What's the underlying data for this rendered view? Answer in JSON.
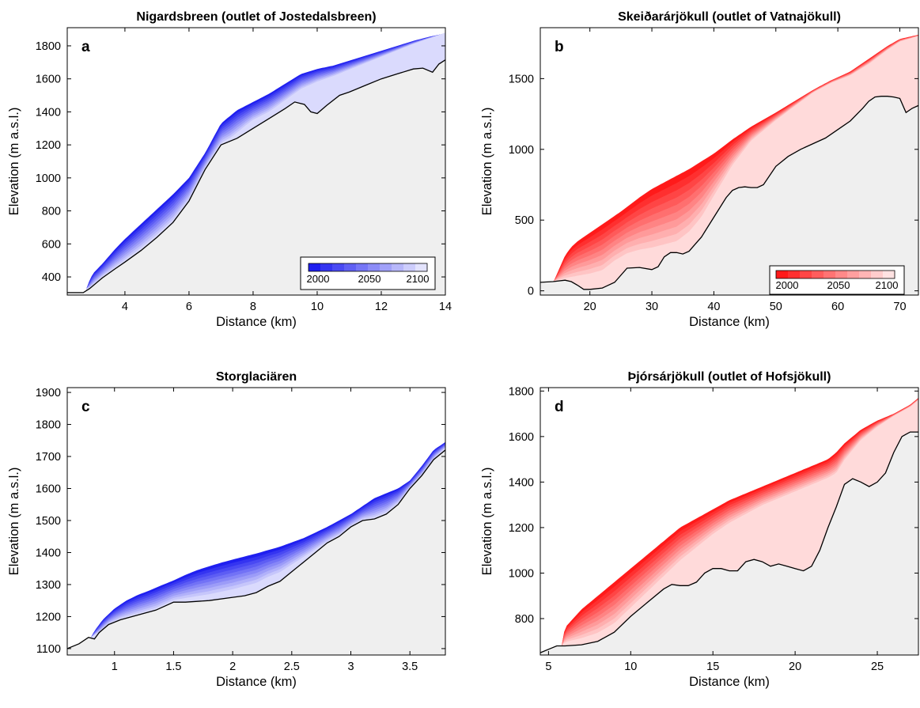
{
  "chart_data": [
    {
      "type": "area",
      "panel_label": "a",
      "title": "Nigardsbreen  (outlet of Jostedalsbreen)",
      "xlabel": "Distance (km)",
      "ylabel": "Elevation (m a.s.l.)",
      "xlim": [
        2.2,
        14
      ],
      "ylim": [
        290,
        1910
      ],
      "xticks": [
        4,
        6,
        8,
        10,
        12,
        14
      ],
      "yticks": [
        400,
        600,
        800,
        1000,
        1200,
        1400,
        1600,
        1800
      ],
      "color_base": "#1f1ff0",
      "colorbar": {
        "ticks": [
          "2000",
          "2050",
          "2100"
        ],
        "range": [
          2000,
          2100
        ]
      },
      "bed": {
        "x": [
          2.2,
          2.7,
          2.9,
          3.3,
          3.7,
          4.0,
          4.5,
          5.0,
          5.5,
          6.0,
          6.5,
          7.0,
          7.5,
          8.0,
          8.5,
          9.0,
          9.3,
          9.6,
          9.8,
          10.0,
          10.3,
          10.7,
          11.0,
          11.5,
          12.0,
          12.5,
          13.0,
          13.3,
          13.6,
          13.8,
          14.0
        ],
        "y": [
          305,
          305,
          330,
          395,
          450,
          490,
          560,
          640,
          730,
          860,
          1050,
          1200,
          1240,
          1300,
          1360,
          1420,
          1460,
          1445,
          1400,
          1390,
          1440,
          1500,
          1520,
          1560,
          1600,
          1630,
          1660,
          1665,
          1640,
          1690,
          1715
        ]
      },
      "surface_2000": {
        "x": [
          2.8,
          2.9,
          3.0,
          3.3,
          3.7,
          4.0,
          4.5,
          5.0,
          5.5,
          6.0,
          6.5,
          7.0,
          7.5,
          8.0,
          8.5,
          9.0,
          9.5,
          10.0,
          10.5,
          11.0,
          11.5,
          12.0,
          12.5,
          13.0,
          13.5,
          14.0
        ],
        "y": [
          330,
          380,
          420,
          480,
          570,
          630,
          720,
          810,
          900,
          1000,
          1150,
          1330,
          1410,
          1460,
          1510,
          1570,
          1630,
          1660,
          1680,
          1710,
          1740,
          1770,
          1800,
          1830,
          1855,
          1875
        ]
      },
      "surface_2100": {
        "x": [
          2.9,
          3.3,
          3.7,
          4.0,
          4.5,
          5.0,
          5.5,
          6.0,
          6.5,
          7.0,
          7.3,
          7.5,
          7.8,
          8.0,
          8.5,
          9.0,
          9.5,
          10.0,
          10.5,
          11.0,
          11.5,
          12.0,
          12.5,
          13.0,
          13.5,
          14.0
        ],
        "y": [
          330,
          395,
          450,
          490,
          560,
          640,
          730,
          860,
          1050,
          1200,
          1230,
          1260,
          1310,
          1340,
          1390,
          1460,
          1530,
          1575,
          1610,
          1650,
          1690,
          1730,
          1770,
          1810,
          1845,
          1880
        ]
      }
    },
    {
      "type": "area",
      "panel_label": "b",
      "title": "Skeiðarárjökull (outlet of Vatnajökull)",
      "xlabel": "Distance (km)",
      "ylabel": "Elevation (m a.s.l.)",
      "xlim": [
        12,
        73
      ],
      "ylim": [
        -30,
        1860
      ],
      "xticks": [
        20,
        30,
        40,
        50,
        60,
        70
      ],
      "yticks": [
        0,
        500,
        1000,
        1500
      ],
      "color_base": "#ff1a1a",
      "colorbar": {
        "ticks": [
          "2000",
          "2050",
          "2100"
        ],
        "range": [
          2000,
          2100
        ]
      },
      "bed": {
        "x": [
          12,
          14,
          16,
          17,
          18,
          19,
          20,
          22,
          24,
          26,
          28,
          30,
          31,
          32,
          33,
          34,
          35,
          36,
          37,
          38,
          40,
          42,
          43,
          44,
          45,
          46,
          47,
          48,
          50,
          52,
          54,
          56,
          58,
          60,
          62,
          64,
          65,
          66,
          67,
          68,
          69,
          70,
          71,
          72,
          73
        ],
        "y": [
          60,
          65,
          75,
          65,
          40,
          10,
          10,
          20,
          60,
          160,
          165,
          150,
          170,
          240,
          270,
          270,
          260,
          280,
          330,
          380,
          520,
          660,
          710,
          730,
          735,
          730,
          730,
          750,
          880,
          950,
          1000,
          1040,
          1080,
          1140,
          1200,
          1290,
          1340,
          1370,
          1375,
          1375,
          1370,
          1360,
          1260,
          1290,
          1310
        ]
      },
      "surface_2000": {
        "x": [
          14.2,
          15,
          16,
          17,
          18,
          20,
          22,
          25,
          28,
          30,
          33,
          36,
          40,
          43,
          46,
          50,
          53,
          56,
          59,
          62,
          65,
          68,
          70,
          73
        ],
        "y": [
          70,
          150,
          250,
          310,
          350,
          410,
          470,
          560,
          660,
          720,
          790,
          860,
          970,
          1070,
          1160,
          1260,
          1340,
          1420,
          1490,
          1550,
          1640,
          1730,
          1780,
          1810
        ]
      },
      "surface_2100": {
        "x": [
          14.2,
          17,
          20,
          22,
          24,
          26,
          28,
          30,
          32,
          34,
          36,
          38,
          40,
          43,
          46,
          50,
          53,
          56,
          59,
          62,
          65,
          68,
          70,
          73
        ],
        "y": [
          70,
          75,
          90,
          110,
          180,
          230,
          250,
          260,
          280,
          300,
          370,
          480,
          640,
          870,
          1050,
          1200,
          1300,
          1400,
          1470,
          1520,
          1600,
          1700,
          1760,
          1800
        ]
      }
    },
    {
      "type": "area",
      "panel_label": "c",
      "title": "Storglaciären",
      "xlabel": "Distance (km)",
      "ylabel": "Elevation (m a.s.l.)",
      "xlim": [
        0.6,
        3.8
      ],
      "ylim": [
        1080,
        1915
      ],
      "xticks": [
        1,
        1.5,
        2,
        2.5,
        3,
        3.5
      ],
      "yticks": [
        1100,
        1200,
        1300,
        1400,
        1500,
        1600,
        1700,
        1800,
        1900
      ],
      "color_base": "#1f1ff0",
      "bed": {
        "x": [
          0.6,
          0.7,
          0.78,
          0.83,
          0.87,
          0.95,
          1.05,
          1.2,
          1.35,
          1.5,
          1.6,
          1.8,
          2.0,
          2.1,
          2.2,
          2.3,
          2.4,
          2.5,
          2.6,
          2.7,
          2.8,
          2.9,
          3.0,
          3.1,
          3.2,
          3.3,
          3.4,
          3.5,
          3.6,
          3.7,
          3.8
        ],
        "y": [
          1100,
          1115,
          1135,
          1130,
          1150,
          1175,
          1190,
          1205,
          1220,
          1245,
          1245,
          1250,
          1260,
          1265,
          1275,
          1295,
          1310,
          1340,
          1370,
          1400,
          1430,
          1450,
          1480,
          1500,
          1505,
          1520,
          1550,
          1600,
          1640,
          1690,
          1720
        ]
      },
      "surface_2000": {
        "x": [
          0.8,
          0.83,
          0.9,
          1.0,
          1.1,
          1.2,
          1.3,
          1.4,
          1.5,
          1.6,
          1.7,
          1.8,
          1.9,
          2.0,
          2.2,
          2.4,
          2.6,
          2.8,
          3.0,
          3.2,
          3.3,
          3.4,
          3.5,
          3.6,
          3.7,
          3.8
        ],
        "y": [
          1135,
          1155,
          1190,
          1225,
          1250,
          1268,
          1282,
          1298,
          1313,
          1330,
          1345,
          1357,
          1368,
          1378,
          1397,
          1418,
          1445,
          1480,
          1520,
          1570,
          1585,
          1600,
          1625,
          1670,
          1720,
          1745
        ]
      },
      "surface_2100": {
        "x": [
          0.8,
          0.87,
          0.95,
          1.05,
          1.2,
          1.35,
          1.5,
          1.6,
          1.8,
          2.0,
          2.1,
          2.2,
          2.3,
          2.4,
          2.5,
          2.6,
          2.7,
          2.8,
          2.9,
          3.0,
          3.1,
          3.2,
          3.3,
          3.4,
          3.5,
          3.6,
          3.7,
          3.8
        ],
        "y": [
          1135,
          1150,
          1175,
          1190,
          1205,
          1220,
          1245,
          1250,
          1260,
          1275,
          1285,
          1295,
          1315,
          1330,
          1355,
          1380,
          1405,
          1430,
          1450,
          1475,
          1495,
          1505,
          1520,
          1545,
          1590,
          1640,
          1690,
          1725
        ]
      }
    },
    {
      "type": "area",
      "panel_label": "d",
      "title": "Þjórsárjökull (outlet of Hofsjökull)",
      "xlabel": "Distance (km)",
      "ylabel": "Elevation (m a.s.l.)",
      "xlim": [
        4.5,
        27.5
      ],
      "ylim": [
        640,
        1815
      ],
      "xticks": [
        5,
        10,
        15,
        20,
        25
      ],
      "yticks": [
        800,
        1000,
        1200,
        1400,
        1600,
        1800
      ],
      "color_base": "#ff1a1a",
      "bed": {
        "x": [
          4.5,
          5.0,
          5.5,
          6.0,
          7.0,
          8.0,
          9.0,
          10.0,
          11.0,
          12.0,
          12.5,
          13.0,
          13.5,
          14.0,
          14.5,
          15.0,
          15.5,
          16.0,
          16.5,
          17.0,
          17.5,
          18.0,
          18.5,
          19.0,
          19.5,
          20.0,
          20.5,
          21.0,
          21.5,
          22.0,
          22.5,
          23.0,
          23.5,
          24.0,
          24.5,
          25.0,
          25.5,
          26.0,
          26.5,
          27.0,
          27.5
        ],
        "y": [
          650,
          665,
          680,
          680,
          685,
          700,
          740,
          810,
          870,
          930,
          950,
          945,
          945,
          960,
          1000,
          1020,
          1020,
          1010,
          1010,
          1050,
          1060,
          1050,
          1030,
          1040,
          1030,
          1020,
          1010,
          1030,
          1100,
          1200,
          1290,
          1390,
          1415,
          1400,
          1380,
          1400,
          1440,
          1530,
          1600,
          1620,
          1620
        ]
      },
      "surface_2000": {
        "x": [
          5.8,
          6.0,
          6.5,
          7.0,
          8.0,
          9.0,
          10.0,
          11.0,
          12.0,
          13.0,
          14.0,
          15.0,
          16.0,
          17.0,
          18.0,
          19.0,
          20.0,
          21.0,
          22.0,
          22.5,
          23.0,
          24.0,
          25.0,
          26.0,
          27.0,
          27.5
        ],
        "y": [
          680,
          760,
          800,
          840,
          900,
          960,
          1020,
          1080,
          1140,
          1200,
          1240,
          1280,
          1320,
          1350,
          1380,
          1410,
          1440,
          1470,
          1500,
          1530,
          1570,
          1630,
          1670,
          1700,
          1740,
          1770
        ]
      },
      "surface_2100": {
        "x": [
          5.8,
          6.0,
          7.0,
          8.0,
          9.0,
          10.0,
          11.0,
          12.0,
          13.0,
          14.0,
          15.0,
          16.0,
          17.0,
          18.0,
          19.0,
          20.0,
          21.0,
          22.0,
          22.5,
          23.0,
          24.0,
          25.0,
          26.0,
          27.0,
          27.5
        ],
        "y": [
          680,
          690,
          700,
          720,
          760,
          830,
          900,
          970,
          1040,
          1100,
          1160,
          1210,
          1250,
          1290,
          1320,
          1350,
          1380,
          1410,
          1430,
          1490,
          1580,
          1640,
          1690,
          1730,
          1760
        ]
      }
    }
  ]
}
